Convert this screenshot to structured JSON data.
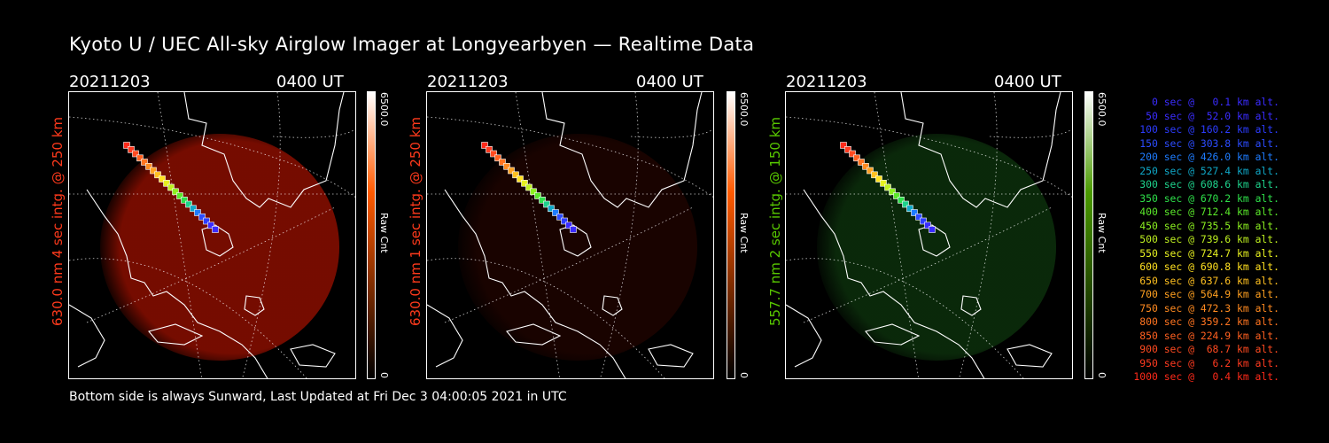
{
  "title": "Kyoto U / UEC All-sky Airglow Imager at Longyearbyen — Realtime Data",
  "footer": "Bottom side is always Sunward, Last Updated at Fri Dec  3 04:00:05 2021 in UTC",
  "panels": [
    {
      "date": "20211203",
      "time": "0400 UT",
      "label": "630.0 nm  4 sec intg. @ 250 km",
      "label_color": "#ff3a1c",
      "cmax": "6500.0",
      "cmin": "0",
      "cunit": "Raw Cnt",
      "glow": "#8a0e00",
      "glow_opacity": "0.85",
      "bar_top": "#ff5a00"
    },
    {
      "date": "20211203",
      "time": "0400 UT",
      "label": "630.0 nm  1 sec intg. @ 250 km",
      "label_color": "#ff3a1c",
      "cmax": "6500.0",
      "cmin": "0",
      "cunit": "Raw Cnt",
      "glow": "#2a0500",
      "glow_opacity": "0.6",
      "bar_top": "#ff5a00"
    },
    {
      "date": "20211203",
      "time": "0400 UT",
      "label": "557.7 nm  2 sec intg. @ 150 km",
      "label_color": "#58c800",
      "cmax": "6500.0",
      "cmin": "0",
      "cunit": "Raw Cnt",
      "glow": "#0f3a0f",
      "glow_opacity": "0.7",
      "bar_top": "#4a9a00"
    }
  ],
  "legend": [
    {
      "text": "0 sec @   0.1 km alt.",
      "color": "#3a2cff"
    },
    {
      "text": "50 sec @  52.0 km alt.",
      "color": "#3a2cff"
    },
    {
      "text": "100 sec @ 160.2 km alt.",
      "color": "#2c3cff"
    },
    {
      "text": "150 sec @ 303.8 km alt.",
      "color": "#2c4cff"
    },
    {
      "text": "200 sec @ 426.0 km alt.",
      "color": "#1e7cff"
    },
    {
      "text": "250 sec @ 527.4 km alt.",
      "color": "#10a8c8"
    },
    {
      "text": "300 sec @ 608.6 km alt.",
      "color": "#1ed28c"
    },
    {
      "text": "350 sec @ 670.2 km alt.",
      "color": "#2ee04a"
    },
    {
      "text": "400 sec @ 712.4 km alt.",
      "color": "#5ae82a"
    },
    {
      "text": "450 sec @ 735.5 km alt.",
      "color": "#8cf020"
    },
    {
      "text": "500 sec @ 739.6 km alt.",
      "color": "#bef020"
    },
    {
      "text": "550 sec @ 724.7 km alt.",
      "color": "#e6f020"
    },
    {
      "text": "600 sec @ 690.8 km alt.",
      "color": "#ffe020"
    },
    {
      "text": "650 sec @ 637.6 km alt.",
      "color": "#ffc020"
    },
    {
      "text": "700 sec @ 564.9 km alt.",
      "color": "#ffa020"
    },
    {
      "text": "750 sec @ 472.3 km alt.",
      "color": "#ff8a20"
    },
    {
      "text": "800 sec @ 359.2 km alt.",
      "color": "#ff7420"
    },
    {
      "text": "850 sec @ 224.9 km alt.",
      "color": "#ff6020"
    },
    {
      "text": "900 sec @  68.7 km alt.",
      "color": "#ff4a20"
    },
    {
      "text": "950 sec @   6.2 km alt.",
      "color": "#ff3a20"
    },
    {
      "text": "1000 sec @   0.4 km alt.",
      "color": "#ff2a1a"
    }
  ]
}
